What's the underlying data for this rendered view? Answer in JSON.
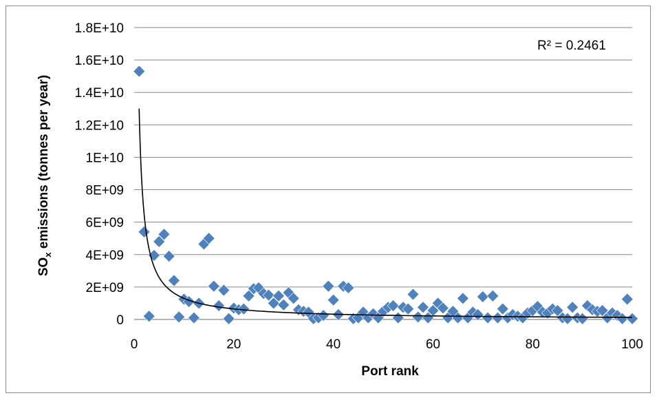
{
  "chart_data": {
    "type": "scatter",
    "title": "",
    "xlabel": "Port rank",
    "ylabel_main": "SO",
    "ylabel_sub": "x",
    "ylabel_rest": " emissions (tonnes per year)",
    "xlim": [
      0,
      100
    ],
    "ylim": [
      0,
      18000000000
    ],
    "x_ticks": [
      0,
      20,
      40,
      60,
      80,
      100
    ],
    "x_tick_labels": [
      "0",
      "20",
      "40",
      "60",
      "80",
      "100"
    ],
    "y_ticks": [
      0,
      2000000000,
      4000000000,
      6000000000,
      8000000000,
      10000000000,
      12000000000,
      14000000000,
      16000000000,
      18000000000
    ],
    "y_tick_labels": [
      "0",
      "2E+09",
      "4E+09",
      "6E+09",
      "8E+09",
      "1E+10",
      "1.2E+10",
      "1.4E+10",
      "1.6E+10",
      "1.8E+10"
    ],
    "grid": "horizontal",
    "marker_color": "#4f81bd",
    "trendline_color": "#000000",
    "r_squared_label": "R² = 0.2461",
    "trendline": {
      "type": "power",
      "a": 13000000000,
      "b": -1.0,
      "x_start": 1,
      "x_end": 100
    },
    "points": [
      [
        1,
        15300000000
      ],
      [
        2,
        5400000000
      ],
      [
        3,
        200000000
      ],
      [
        4,
        3950000000
      ],
      [
        5,
        4800000000
      ],
      [
        6,
        5250000000
      ],
      [
        7,
        3900000000
      ],
      [
        8,
        2400000000
      ],
      [
        9,
        150000000
      ],
      [
        10,
        1250000000
      ],
      [
        11,
        1100000000
      ],
      [
        12,
        100000000
      ],
      [
        13,
        1000000000
      ],
      [
        14,
        4650000000
      ],
      [
        15,
        5000000000
      ],
      [
        16,
        2050000000
      ],
      [
        17,
        850000000
      ],
      [
        18,
        1800000000
      ],
      [
        19,
        50000000
      ],
      [
        20,
        700000000
      ],
      [
        21,
        600000000
      ],
      [
        22,
        650000000
      ],
      [
        23,
        1450000000
      ],
      [
        24,
        1900000000
      ],
      [
        25,
        1950000000
      ],
      [
        26,
        1600000000
      ],
      [
        27,
        1500000000
      ],
      [
        28,
        1000000000
      ],
      [
        29,
        1450000000
      ],
      [
        30,
        900000000
      ],
      [
        31,
        1650000000
      ],
      [
        32,
        1300000000
      ],
      [
        33,
        600000000
      ],
      [
        34,
        500000000
      ],
      [
        35,
        450000000
      ],
      [
        36,
        50000000
      ],
      [
        37,
        100000000
      ],
      [
        38,
        250000000
      ],
      [
        39,
        2050000000
      ],
      [
        40,
        1200000000
      ],
      [
        41,
        300000000
      ],
      [
        42,
        2050000000
      ],
      [
        43,
        1950000000
      ],
      [
        44,
        50000000
      ],
      [
        45,
        100000000
      ],
      [
        46,
        450000000
      ],
      [
        47,
        100000000
      ],
      [
        48,
        350000000
      ],
      [
        49,
        100000000
      ],
      [
        50,
        500000000
      ],
      [
        51,
        750000000
      ],
      [
        52,
        850000000
      ],
      [
        53,
        100000000
      ],
      [
        54,
        750000000
      ],
      [
        55,
        650000000
      ],
      [
        56,
        1550000000
      ],
      [
        57,
        150000000
      ],
      [
        58,
        750000000
      ],
      [
        59,
        100000000
      ],
      [
        60,
        550000000
      ],
      [
        61,
        1000000000
      ],
      [
        62,
        700000000
      ],
      [
        63,
        100000000
      ],
      [
        64,
        500000000
      ],
      [
        65,
        100000000
      ],
      [
        66,
        1300000000
      ],
      [
        67,
        100000000
      ],
      [
        68,
        450000000
      ],
      [
        69,
        300000000
      ],
      [
        70,
        1400000000
      ],
      [
        71,
        100000000
      ],
      [
        72,
        1450000000
      ],
      [
        73,
        100000000
      ],
      [
        74,
        650000000
      ],
      [
        75,
        100000000
      ],
      [
        76,
        300000000
      ],
      [
        77,
        200000000
      ],
      [
        78,
        100000000
      ],
      [
        79,
        400000000
      ],
      [
        80,
        550000000
      ],
      [
        81,
        800000000
      ],
      [
        82,
        450000000
      ],
      [
        83,
        400000000
      ],
      [
        84,
        650000000
      ],
      [
        85,
        550000000
      ],
      [
        86,
        100000000
      ],
      [
        87,
        50000000
      ],
      [
        88,
        750000000
      ],
      [
        89,
        100000000
      ],
      [
        90,
        50000000
      ],
      [
        91,
        850000000
      ],
      [
        92,
        600000000
      ],
      [
        93,
        500000000
      ],
      [
        94,
        550000000
      ],
      [
        95,
        100000000
      ],
      [
        96,
        400000000
      ],
      [
        97,
        250000000
      ],
      [
        98,
        50000000
      ],
      [
        99,
        1250000000
      ],
      [
        100,
        50000000
      ]
    ]
  }
}
